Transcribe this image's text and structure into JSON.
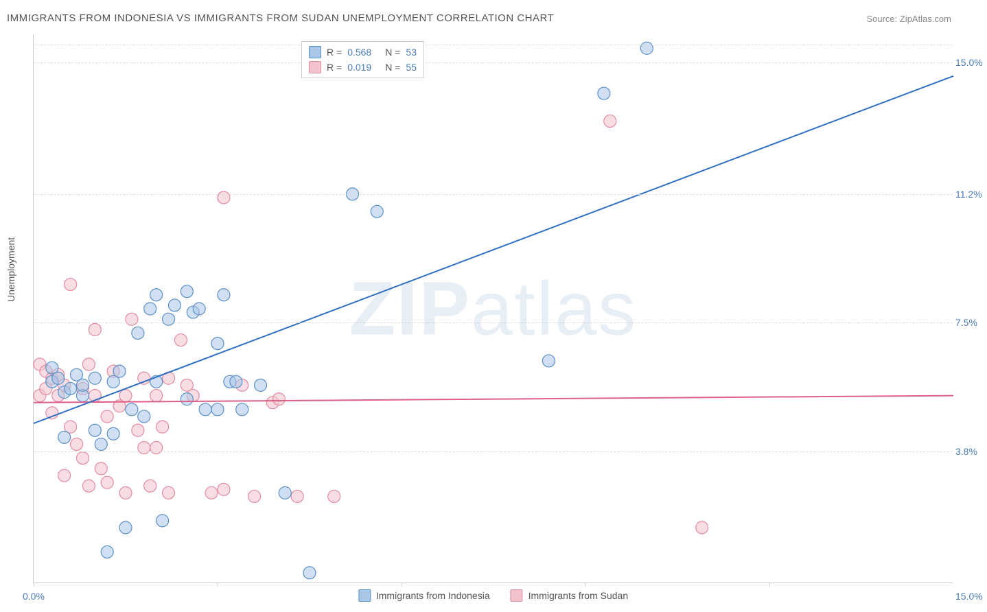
{
  "title": "IMMIGRANTS FROM INDONESIA VS IMMIGRANTS FROM SUDAN UNEMPLOYMENT CORRELATION CHART",
  "source_prefix": "Source: ",
  "source": "ZipAtlas.com",
  "ylabel": "Unemployment",
  "watermark_bold": "ZIP",
  "watermark_light": "atlas",
  "chart": {
    "type": "scatter",
    "xlim": [
      0,
      15
    ],
    "ylim": [
      0,
      15.8
    ],
    "xticks_positions": [
      0,
      3,
      6,
      9,
      12
    ],
    "xtick_label_left": "0.0%",
    "xtick_label_right": "15.0%",
    "yticks": [
      {
        "v": 3.8,
        "label": "3.8%"
      },
      {
        "v": 7.5,
        "label": "7.5%"
      },
      {
        "v": 11.2,
        "label": "11.2%"
      },
      {
        "v": 15.0,
        "label": "15.0%"
      }
    ],
    "top_dash_y": 15.5,
    "series": {
      "indonesia": {
        "label": "Immigrants from Indonesia",
        "fill": "#a9c7e8",
        "stroke": "#5b8fc7",
        "line_color": "#2f6fc4",
        "r": 0.568,
        "n": 53,
        "regression": {
          "x1": 0,
          "y1": 4.6,
          "x2": 15,
          "y2": 14.6
        },
        "points": [
          [
            0.3,
            5.8
          ],
          [
            0.3,
            6.2
          ],
          [
            0.5,
            5.5
          ],
          [
            0.4,
            5.9
          ],
          [
            0.6,
            5.6
          ],
          [
            0.5,
            4.2
          ],
          [
            0.7,
            6.0
          ],
          [
            0.8,
            5.4
          ],
          [
            0.8,
            5.7
          ],
          [
            1.0,
            5.9
          ],
          [
            1.0,
            4.4
          ],
          [
            1.1,
            4.0
          ],
          [
            1.2,
            0.9
          ],
          [
            1.3,
            5.8
          ],
          [
            1.3,
            4.3
          ],
          [
            1.4,
            6.1
          ],
          [
            1.5,
            1.6
          ],
          [
            1.6,
            5.0
          ],
          [
            1.7,
            7.2
          ],
          [
            1.8,
            4.8
          ],
          [
            1.9,
            7.9
          ],
          [
            2.0,
            8.3
          ],
          [
            2.0,
            5.8
          ],
          [
            2.1,
            1.8
          ],
          [
            2.2,
            7.6
          ],
          [
            2.3,
            8.0
          ],
          [
            2.5,
            5.3
          ],
          [
            2.5,
            8.4
          ],
          [
            2.6,
            7.8
          ],
          [
            2.7,
            7.9
          ],
          [
            2.8,
            5.0
          ],
          [
            3.0,
            5.0
          ],
          [
            3.0,
            6.9
          ],
          [
            3.1,
            8.3
          ],
          [
            3.2,
            5.8
          ],
          [
            3.3,
            5.8
          ],
          [
            3.4,
            5.0
          ],
          [
            3.7,
            5.7
          ],
          [
            4.1,
            2.6
          ],
          [
            4.5,
            0.3
          ],
          [
            5.2,
            11.2
          ],
          [
            5.6,
            10.7
          ],
          [
            8.4,
            6.4
          ],
          [
            9.3,
            14.1
          ],
          [
            10.0,
            15.4
          ]
        ]
      },
      "sudan": {
        "label": "Immigrants from Sudan",
        "fill": "#f2c3cd",
        "stroke": "#e28aa0",
        "line_color": "#dd5f86",
        "r": 0.019,
        "n": 55,
        "regression": {
          "x1": 0,
          "y1": 5.2,
          "x2": 15,
          "y2": 5.4
        },
        "points": [
          [
            0.1,
            5.4
          ],
          [
            0.1,
            6.3
          ],
          [
            0.2,
            5.6
          ],
          [
            0.2,
            6.1
          ],
          [
            0.3,
            5.9
          ],
          [
            0.3,
            4.9
          ],
          [
            0.4,
            5.4
          ],
          [
            0.4,
            6.0
          ],
          [
            0.5,
            5.7
          ],
          [
            0.5,
            3.1
          ],
          [
            0.6,
            8.6
          ],
          [
            0.6,
            4.5
          ],
          [
            0.7,
            4.0
          ],
          [
            0.8,
            5.6
          ],
          [
            0.8,
            3.6
          ],
          [
            0.9,
            6.3
          ],
          [
            0.9,
            2.8
          ],
          [
            1.0,
            5.4
          ],
          [
            1.0,
            7.3
          ],
          [
            1.1,
            3.3
          ],
          [
            1.2,
            4.8
          ],
          [
            1.2,
            2.9
          ],
          [
            1.3,
            6.1
          ],
          [
            1.4,
            5.1
          ],
          [
            1.5,
            2.6
          ],
          [
            1.5,
            5.4
          ],
          [
            1.6,
            7.6
          ],
          [
            1.7,
            4.4
          ],
          [
            1.8,
            5.9
          ],
          [
            1.8,
            3.9
          ],
          [
            1.9,
            2.8
          ],
          [
            2.0,
            3.9
          ],
          [
            2.0,
            5.4
          ],
          [
            2.1,
            4.5
          ],
          [
            2.2,
            5.9
          ],
          [
            2.2,
            2.6
          ],
          [
            2.4,
            7.0
          ],
          [
            2.5,
            5.7
          ],
          [
            2.6,
            5.4
          ],
          [
            2.9,
            2.6
          ],
          [
            3.1,
            2.7
          ],
          [
            3.1,
            11.1
          ],
          [
            3.4,
            5.7
          ],
          [
            3.6,
            2.5
          ],
          [
            3.9,
            5.2
          ],
          [
            4.0,
            5.3
          ],
          [
            4.3,
            2.5
          ],
          [
            4.9,
            2.5
          ],
          [
            9.4,
            13.3
          ],
          [
            10.9,
            1.6
          ]
        ]
      }
    },
    "marker_radius": 9,
    "marker_opacity": 0.55,
    "line_width": 2,
    "grid_color": "#dddddd"
  }
}
